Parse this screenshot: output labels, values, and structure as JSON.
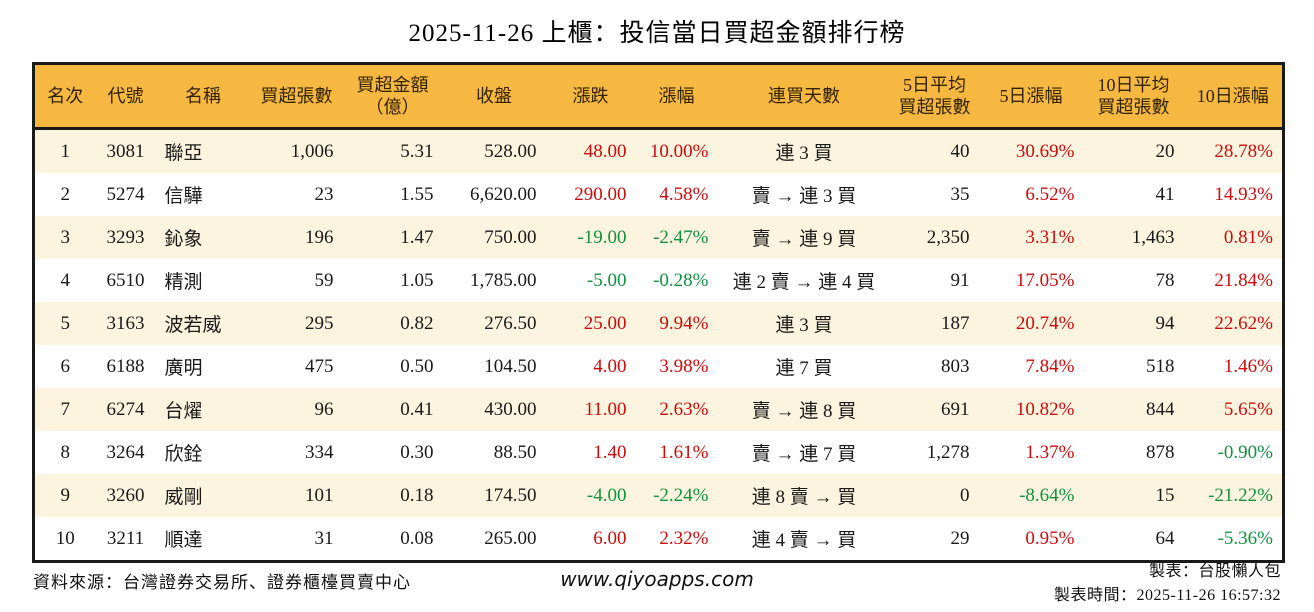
{
  "title": "2025-11-26 上櫃：投信當日買超金額排行榜",
  "colors": {
    "header_bg": "#F6B840",
    "row_stripe_bg": "#FCF4DE",
    "row_bg": "#FFFFFF",
    "border": "#1A1A1A",
    "up_red": "#CC0C0C",
    "down_green": "#12913F"
  },
  "table": {
    "headers": [
      "名次",
      "代號",
      "名稱",
      "買超張數",
      "買超金額\n（億）",
      "收盤",
      "漲跌",
      "漲幅",
      "連買天數",
      "5日平均\n買超張數",
      "5日漲幅",
      "10日平均\n買超張數",
      "10日漲幅"
    ],
    "columns": [
      {
        "key": "rank",
        "align": "c",
        "signColor": false
      },
      {
        "key": "code",
        "align": "c",
        "signColor": false
      },
      {
        "key": "name",
        "align": "l",
        "signColor": false
      },
      {
        "key": "net_buy_lots",
        "align": "r",
        "signColor": false
      },
      {
        "key": "net_buy_amount",
        "align": "r",
        "signColor": false
      },
      {
        "key": "close",
        "align": "r",
        "signColor": false
      },
      {
        "key": "change",
        "align": "r",
        "signColor": true
      },
      {
        "key": "change_pct",
        "align": "r",
        "signColor": true
      },
      {
        "key": "streak",
        "align": "c",
        "signColor": false
      },
      {
        "key": "avg5_lots",
        "align": "r",
        "signColor": false
      },
      {
        "key": "pct5",
        "align": "r",
        "signColor": true
      },
      {
        "key": "avg10_lots",
        "align": "r",
        "signColor": false
      },
      {
        "key": "pct10",
        "align": "r",
        "signColor": true
      }
    ],
    "rows": [
      {
        "rank": "1",
        "code": "3081",
        "name": "聯亞",
        "net_buy_lots": "1,006",
        "net_buy_amount": "5.31",
        "close": "528.00",
        "change": "48.00",
        "change_pct": "10.00%",
        "streak": "連 3 買",
        "avg5_lots": "40",
        "pct5": "30.69%",
        "avg10_lots": "20",
        "pct10": "28.78%"
      },
      {
        "rank": "2",
        "code": "5274",
        "name": "信驊",
        "net_buy_lots": "23",
        "net_buy_amount": "1.55",
        "close": "6,620.00",
        "change": "290.00",
        "change_pct": "4.58%",
        "streak": "賣 → 連 3 買",
        "avg5_lots": "35",
        "pct5": "6.52%",
        "avg10_lots": "41",
        "pct10": "14.93%"
      },
      {
        "rank": "3",
        "code": "3293",
        "name": "鈊象",
        "net_buy_lots": "196",
        "net_buy_amount": "1.47",
        "close": "750.00",
        "change": "-19.00",
        "change_pct": "-2.47%",
        "streak": "賣 → 連 9 買",
        "avg5_lots": "2,350",
        "pct5": "3.31%",
        "avg10_lots": "1,463",
        "pct10": "0.81%"
      },
      {
        "rank": "4",
        "code": "6510",
        "name": "精測",
        "net_buy_lots": "59",
        "net_buy_amount": "1.05",
        "close": "1,785.00",
        "change": "-5.00",
        "change_pct": "-0.28%",
        "streak": "連 2 賣 → 連 4 買",
        "avg5_lots": "91",
        "pct5": "17.05%",
        "avg10_lots": "78",
        "pct10": "21.84%"
      },
      {
        "rank": "5",
        "code": "3163",
        "name": "波若威",
        "net_buy_lots": "295",
        "net_buy_amount": "0.82",
        "close": "276.50",
        "change": "25.00",
        "change_pct": "9.94%",
        "streak": "連 3 買",
        "avg5_lots": "187",
        "pct5": "20.74%",
        "avg10_lots": "94",
        "pct10": "22.62%"
      },
      {
        "rank": "6",
        "code": "6188",
        "name": "廣明",
        "net_buy_lots": "475",
        "net_buy_amount": "0.50",
        "close": "104.50",
        "change": "4.00",
        "change_pct": "3.98%",
        "streak": "連 7 買",
        "avg5_lots": "803",
        "pct5": "7.84%",
        "avg10_lots": "518",
        "pct10": "1.46%"
      },
      {
        "rank": "7",
        "code": "6274",
        "name": "台燿",
        "net_buy_lots": "96",
        "net_buy_amount": "0.41",
        "close": "430.00",
        "change": "11.00",
        "change_pct": "2.63%",
        "streak": "賣 → 連 8 買",
        "avg5_lots": "691",
        "pct5": "10.82%",
        "avg10_lots": "844",
        "pct10": "5.65%"
      },
      {
        "rank": "8",
        "code": "3264",
        "name": "欣銓",
        "net_buy_lots": "334",
        "net_buy_amount": "0.30",
        "close": "88.50",
        "change": "1.40",
        "change_pct": "1.61%",
        "streak": "賣 → 連 7 買",
        "avg5_lots": "1,278",
        "pct5": "1.37%",
        "avg10_lots": "878",
        "pct10": "-0.90%"
      },
      {
        "rank": "9",
        "code": "3260",
        "name": "威剛",
        "net_buy_lots": "101",
        "net_buy_amount": "0.18",
        "close": "174.50",
        "change": "-4.00",
        "change_pct": "-2.24%",
        "streak": "連 8 賣 → 買",
        "avg5_lots": "0",
        "pct5": "-8.64%",
        "avg10_lots": "15",
        "pct10": "-21.22%"
      },
      {
        "rank": "10",
        "code": "3211",
        "name": "順達",
        "net_buy_lots": "31",
        "net_buy_amount": "0.08",
        "close": "265.00",
        "change": "6.00",
        "change_pct": "2.32%",
        "streak": "連 4 賣 → 買",
        "avg5_lots": "29",
        "pct5": "0.95%",
        "avg10_lots": "64",
        "pct10": "-5.36%"
      }
    ]
  },
  "footer": {
    "source": "資料來源：台灣證券交易所、證券櫃檯買賣中心",
    "website": "www.qiyoapps.com",
    "maker": "製表：台股懶人包",
    "made_time": "製表時間：2025-11-26 16:57:32"
  },
  "chart_data": {
    "type": "table",
    "title": "2025-11-26 上櫃：投信當日買超金額排行榜",
    "columns": [
      "名次",
      "代號",
      "名稱",
      "買超張數",
      "買超金額（億）",
      "收盤",
      "漲跌",
      "漲幅",
      "連買天數",
      "5日平均買超張數",
      "5日漲幅",
      "10日平均買超張數",
      "10日漲幅"
    ],
    "rows": [
      [
        "1",
        "3081",
        "聯亞",
        "1,006",
        "5.31",
        "528.00",
        "48.00",
        "10.00%",
        "連 3 買",
        "40",
        "30.69%",
        "20",
        "28.78%"
      ],
      [
        "2",
        "5274",
        "信驊",
        "23",
        "1.55",
        "6,620.00",
        "290.00",
        "4.58%",
        "賣 → 連 3 買",
        "35",
        "6.52%",
        "41",
        "14.93%"
      ],
      [
        "3",
        "3293",
        "鈊象",
        "196",
        "1.47",
        "750.00",
        "-19.00",
        "-2.47%",
        "賣 → 連 9 買",
        "2,350",
        "3.31%",
        "1,463",
        "0.81%"
      ],
      [
        "4",
        "6510",
        "精測",
        "59",
        "1.05",
        "1,785.00",
        "-5.00",
        "-0.28%",
        "連 2 賣 → 連 4 買",
        "91",
        "17.05%",
        "78",
        "21.84%"
      ],
      [
        "5",
        "3163",
        "波若威",
        "295",
        "0.82",
        "276.50",
        "25.00",
        "9.94%",
        "連 3 買",
        "187",
        "20.74%",
        "94",
        "22.62%"
      ],
      [
        "6",
        "6188",
        "廣明",
        "475",
        "0.50",
        "104.50",
        "4.00",
        "3.98%",
        "連 7 買",
        "803",
        "7.84%",
        "518",
        "1.46%"
      ],
      [
        "7",
        "6274",
        "台燿",
        "96",
        "0.41",
        "430.00",
        "11.00",
        "2.63%",
        "賣 → 連 8 買",
        "691",
        "10.82%",
        "844",
        "5.65%"
      ],
      [
        "8",
        "3264",
        "欣銓",
        "334",
        "0.30",
        "88.50",
        "1.40",
        "1.61%",
        "賣 → 連 7 買",
        "1,278",
        "1.37%",
        "878",
        "-0.90%"
      ],
      [
        "9",
        "3260",
        "威剛",
        "101",
        "0.18",
        "174.50",
        "-4.00",
        "-2.24%",
        "連 8 賣 → 買",
        "0",
        "-8.64%",
        "15",
        "-21.22%"
      ],
      [
        "10",
        "3211",
        "順達",
        "31",
        "0.08",
        "265.00",
        "6.00",
        "2.32%",
        "連 4 賣 → 買",
        "29",
        "0.95%",
        "64",
        "-5.36%"
      ]
    ],
    "color_rule": "positive change values red, negative change values green",
    "legend_position": "none",
    "grid": "off"
  }
}
